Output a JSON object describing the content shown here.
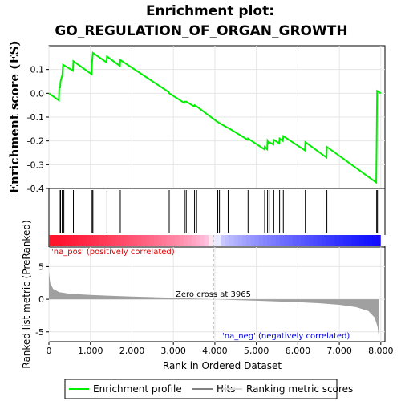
{
  "chart_data": {
    "type": "line",
    "title_line1": "Enrichment plot:",
    "title_line2": "GO_REGULATION_OF_ORGAN_GROWTH",
    "es_ylabel": "Enrichment score (ES)",
    "es_ylim": [
      -0.4,
      0.2
    ],
    "es_yticks": [
      "0.1",
      "0.0",
      "-0.1",
      "-0.2",
      "-0.3",
      "-0.4"
    ],
    "es_ytick_values": [
      0.1,
      0.0,
      -0.1,
      -0.2,
      -0.3,
      -0.4
    ],
    "metric_ylabel": "Ranked list metric (PreRanked)",
    "metric_ylim": [
      -6.5,
      8
    ],
    "metric_yticks": [
      "5",
      "0",
      "-5"
    ],
    "metric_ytick_values": [
      5,
      0,
      -5
    ],
    "xlabel": "Rank in Ordered Dataset",
    "xlim": [
      0,
      8100
    ],
    "xticks": [
      "0",
      "1,000",
      "2,000",
      "3,000",
      "4,000",
      "5,000",
      "6,000",
      "7,000",
      "8,000"
    ],
    "xtick_values": [
      0,
      1000,
      2000,
      3000,
      4000,
      5000,
      6000,
      7000,
      8000
    ],
    "zero_cross_label": "Zero cross at 3965",
    "zero_cross": 3965,
    "pos_label": "'na_pos' (positively correlated)",
    "neg_label": "'na_neg' (negatively correlated)",
    "hits": [
      250,
      280,
      320,
      360,
      590,
      1040,
      1060,
      1400,
      1720,
      2900,
      3270,
      3310,
      3510,
      3560,
      4070,
      4110,
      4320,
      4800,
      5200,
      5270,
      5310,
      5420,
      5560,
      5650,
      6180,
      6700,
      7900,
      7920
    ],
    "es_curve": [
      [
        0,
        0.0
      ],
      [
        240,
        -0.03
      ],
      [
        250,
        0.025
      ],
      [
        270,
        0.025
      ],
      [
        280,
        0.05
      ],
      [
        310,
        0.07
      ],
      [
        320,
        0.07
      ],
      [
        340,
        0.12
      ],
      [
        580,
        0.095
      ],
      [
        590,
        0.135
      ],
      [
        1030,
        0.08
      ],
      [
        1040,
        0.13
      ],
      [
        1060,
        0.17
      ],
      [
        1390,
        0.13
      ],
      [
        1400,
        0.155
      ],
      [
        1710,
        0.115
      ],
      [
        1720,
        0.14
      ],
      [
        2890,
        0.005
      ],
      [
        2900,
        0.0
      ],
      [
        3260,
        -0.04
      ],
      [
        3270,
        -0.035
      ],
      [
        3310,
        -0.035
      ],
      [
        3500,
        -0.055
      ],
      [
        3510,
        -0.05
      ],
      [
        3560,
        -0.055
      ],
      [
        4060,
        -0.12
      ],
      [
        4070,
        -0.12
      ],
      [
        4110,
        -0.125
      ],
      [
        4310,
        -0.145
      ],
      [
        4320,
        -0.145
      ],
      [
        4790,
        -0.195
      ],
      [
        4800,
        -0.19
      ],
      [
        5190,
        -0.235
      ],
      [
        5200,
        -0.225
      ],
      [
        5260,
        -0.235
      ],
      [
        5270,
        -0.2
      ],
      [
        5300,
        -0.21
      ],
      [
        5310,
        -0.205
      ],
      [
        5410,
        -0.215
      ],
      [
        5420,
        -0.195
      ],
      [
        5550,
        -0.21
      ],
      [
        5560,
        -0.19
      ],
      [
        5640,
        -0.2
      ],
      [
        5650,
        -0.18
      ],
      [
        6170,
        -0.24
      ],
      [
        6180,
        -0.205
      ],
      [
        6690,
        -0.27
      ],
      [
        6700,
        -0.225
      ],
      [
        7890,
        -0.375
      ],
      [
        7900,
        -0.19
      ],
      [
        7910,
        0.01
      ],
      [
        8000,
        0.0
      ]
    ],
    "metric_curve": [
      [
        0,
        4.2
      ],
      [
        30,
        2.5
      ],
      [
        100,
        1.6
      ],
      [
        250,
        1.1
      ],
      [
        500,
        0.85
      ],
      [
        1000,
        0.65
      ],
      [
        2000,
        0.42
      ],
      [
        3000,
        0.22
      ],
      [
        3965,
        0.0
      ],
      [
        4500,
        -0.12
      ],
      [
        5000,
        -0.22
      ],
      [
        6000,
        -0.45
      ],
      [
        6500,
        -0.6
      ],
      [
        7000,
        -0.85
      ],
      [
        7400,
        -1.2
      ],
      [
        7700,
        -1.8
      ],
      [
        7850,
        -2.8
      ],
      [
        7920,
        -4.2
      ],
      [
        7960,
        -6.2
      ]
    ]
  },
  "legend": {
    "enrichment_profile": "Enrichment profile",
    "hits": "Hits",
    "ranking_metric_scores": "Ranking metric scores"
  },
  "colors": {
    "es_line": "#00ee00",
    "hit": "#000000",
    "metric_fill": "#a0a0a0",
    "pos_text": "#dd0000",
    "neg_text": "#0000dd",
    "zero_line": "#a0a0a0"
  }
}
